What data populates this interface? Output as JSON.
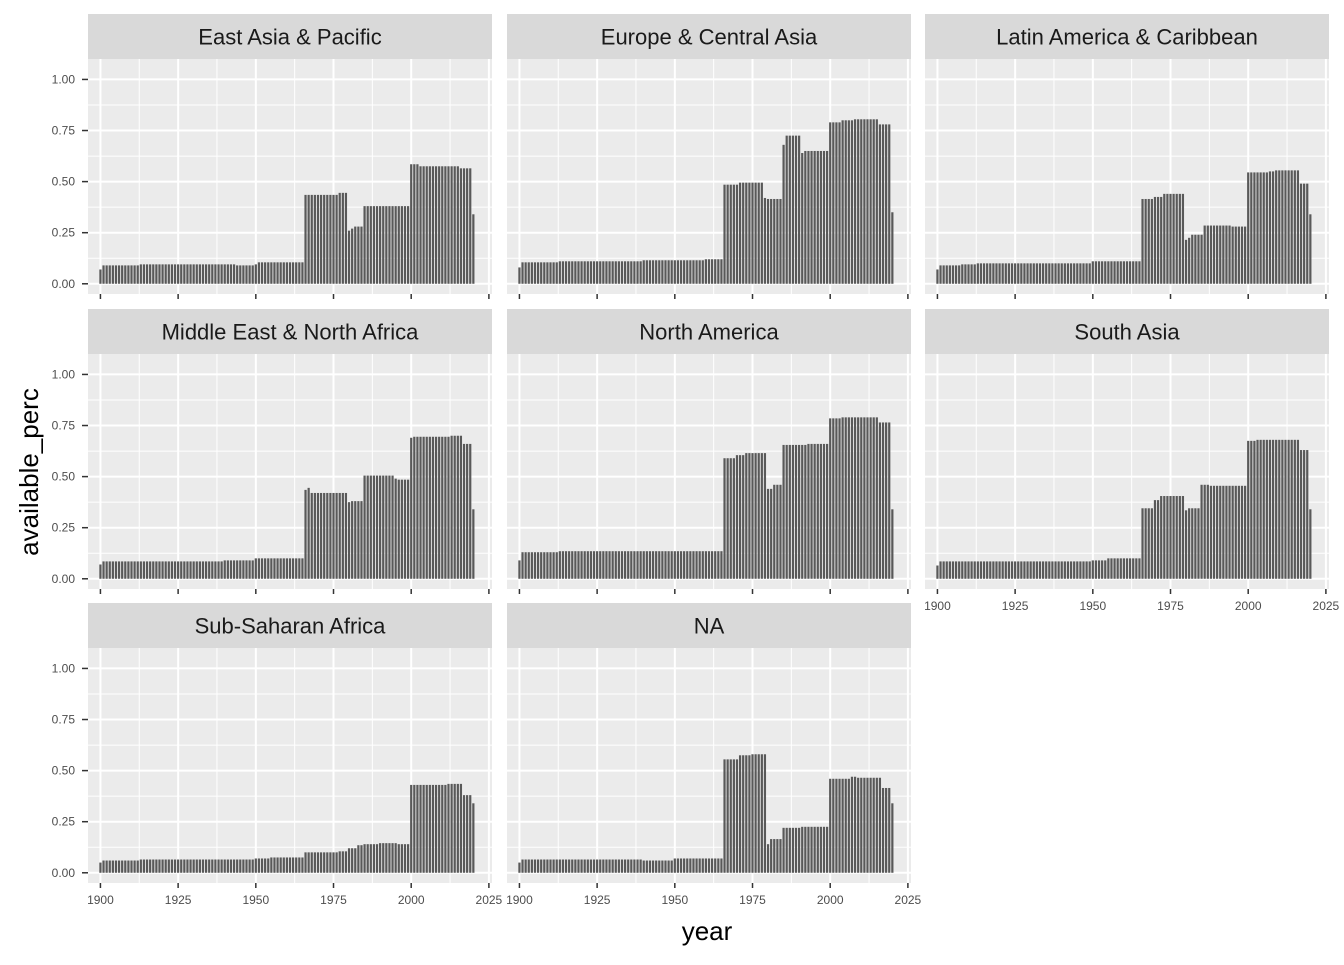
{
  "chart_data": {
    "type": "bar",
    "facet_layout": "3 columns x 3 rows (wrap)",
    "xlabel": "year",
    "ylabel": "available_perc",
    "xlim": [
      1896,
      2026
    ],
    "ylim": [
      -0.05,
      1.1
    ],
    "x_ticks": [
      1900,
      1925,
      1950,
      1975,
      2000,
      2025
    ],
    "y_ticks": [
      0.0,
      0.25,
      0.5,
      0.75,
      1.0
    ],
    "y_tick_labels": [
      "0.00",
      "0.25",
      "0.50",
      "0.75",
      "1.00"
    ],
    "bar_color": "#595959",
    "panel_background": "#ebebeb",
    "strip_background": "#d9d9d9",
    "grid": true,
    "panels": [
      {
        "title": "East Asia & Pacific",
        "segments": [
          [
            1900,
            1901,
            0.07
          ],
          [
            1901,
            1913,
            0.09
          ],
          [
            1913,
            1944,
            0.095
          ],
          [
            1944,
            1950,
            0.09
          ],
          [
            1950,
            1951,
            0.095
          ],
          [
            1951,
            1966,
            0.105
          ],
          [
            1966,
            1977,
            0.435
          ],
          [
            1977,
            1979,
            0.445
          ],
          [
            1979,
            1980,
            0.445
          ],
          [
            1980,
            1981,
            0.26
          ],
          [
            1981,
            1982,
            0.27
          ],
          [
            1982,
            1985,
            0.28
          ],
          [
            1985,
            2000,
            0.38
          ],
          [
            2000,
            2003,
            0.585
          ],
          [
            2003,
            2016,
            0.575
          ],
          [
            2016,
            2020,
            0.565
          ],
          [
            2020,
            2021,
            0.34
          ]
        ]
      },
      {
        "title": "Europe & Central Asia",
        "segments": [
          [
            1900,
            1901,
            0.08
          ],
          [
            1901,
            1913,
            0.105
          ],
          [
            1913,
            1940,
            0.11
          ],
          [
            1940,
            1960,
            0.115
          ],
          [
            1960,
            1966,
            0.12
          ],
          [
            1966,
            1971,
            0.485
          ],
          [
            1971,
            1979,
            0.495
          ],
          [
            1979,
            1980,
            0.42
          ],
          [
            1980,
            1985,
            0.415
          ],
          [
            1985,
            1986,
            0.68
          ],
          [
            1986,
            1991,
            0.725
          ],
          [
            1991,
            1992,
            0.64
          ],
          [
            1992,
            2000,
            0.65
          ],
          [
            2000,
            2004,
            0.79
          ],
          [
            2004,
            2008,
            0.8
          ],
          [
            2008,
            2016,
            0.805
          ],
          [
            2016,
            2020,
            0.78
          ],
          [
            2020,
            2021,
            0.35
          ]
        ]
      },
      {
        "title": "Latin America & Caribbean",
        "segments": [
          [
            1900,
            1901,
            0.07
          ],
          [
            1901,
            1908,
            0.09
          ],
          [
            1908,
            1913,
            0.095
          ],
          [
            1913,
            1950,
            0.1
          ],
          [
            1950,
            1966,
            0.11
          ],
          [
            1966,
            1970,
            0.415
          ],
          [
            1970,
            1973,
            0.425
          ],
          [
            1973,
            1980,
            0.44
          ],
          [
            1980,
            1981,
            0.215
          ],
          [
            1981,
            1982,
            0.225
          ],
          [
            1982,
            1986,
            0.24
          ],
          [
            1986,
            1995,
            0.285
          ],
          [
            1995,
            2000,
            0.28
          ],
          [
            2000,
            2007,
            0.545
          ],
          [
            2007,
            2009,
            0.55
          ],
          [
            2009,
            2017,
            0.555
          ],
          [
            2017,
            2020,
            0.49
          ],
          [
            2020,
            2021,
            0.34
          ]
        ]
      },
      {
        "title": "Middle East & North Africa",
        "segments": [
          [
            1900,
            1901,
            0.07
          ],
          [
            1901,
            1913,
            0.085
          ],
          [
            1913,
            1940,
            0.085
          ],
          [
            1940,
            1950,
            0.09
          ],
          [
            1950,
            1966,
            0.1
          ],
          [
            1966,
            1967,
            0.435
          ],
          [
            1967,
            1968,
            0.445
          ],
          [
            1968,
            1980,
            0.42
          ],
          [
            1980,
            1981,
            0.375
          ],
          [
            1981,
            1985,
            0.38
          ],
          [
            1985,
            1993,
            0.505
          ],
          [
            1993,
            1995,
            0.505
          ],
          [
            1995,
            1996,
            0.49
          ],
          [
            1996,
            2000,
            0.485
          ],
          [
            2000,
            2001,
            0.69
          ],
          [
            2001,
            2013,
            0.695
          ],
          [
            2013,
            2017,
            0.7
          ],
          [
            2017,
            2020,
            0.66
          ],
          [
            2020,
            2021,
            0.34
          ]
        ]
      },
      {
        "title": "North America",
        "segments": [
          [
            1900,
            1901,
            0.09
          ],
          [
            1901,
            1913,
            0.13
          ],
          [
            1913,
            1966,
            0.135
          ],
          [
            1966,
            1970,
            0.59
          ],
          [
            1970,
            1973,
            0.605
          ],
          [
            1973,
            1980,
            0.615
          ],
          [
            1980,
            1982,
            0.44
          ],
          [
            1982,
            1985,
            0.46
          ],
          [
            1985,
            1993,
            0.655
          ],
          [
            1993,
            2000,
            0.66
          ],
          [
            2000,
            2004,
            0.785
          ],
          [
            2004,
            2016,
            0.79
          ],
          [
            2016,
            2020,
            0.765
          ],
          [
            2020,
            2021,
            0.34
          ]
        ]
      },
      {
        "title": "South Asia",
        "segments": [
          [
            1900,
            1901,
            0.065
          ],
          [
            1901,
            1913,
            0.085
          ],
          [
            1913,
            1950,
            0.085
          ],
          [
            1950,
            1955,
            0.09
          ],
          [
            1955,
            1966,
            0.1
          ],
          [
            1966,
            1970,
            0.345
          ],
          [
            1970,
            1972,
            0.385
          ],
          [
            1972,
            1980,
            0.405
          ],
          [
            1980,
            1981,
            0.335
          ],
          [
            1981,
            1985,
            0.345
          ],
          [
            1985,
            1988,
            0.46
          ],
          [
            1988,
            2000,
            0.455
          ],
          [
            2000,
            2003,
            0.675
          ],
          [
            2003,
            2017,
            0.68
          ],
          [
            2017,
            2020,
            0.63
          ],
          [
            2020,
            2021,
            0.34
          ]
        ]
      },
      {
        "title": "Sub-Saharan Africa",
        "segments": [
          [
            1900,
            1901,
            0.05
          ],
          [
            1901,
            1913,
            0.06
          ],
          [
            1913,
            1950,
            0.065
          ],
          [
            1950,
            1955,
            0.07
          ],
          [
            1955,
            1966,
            0.075
          ],
          [
            1966,
            1977,
            0.1
          ],
          [
            1977,
            1980,
            0.105
          ],
          [
            1980,
            1983,
            0.12
          ],
          [
            1983,
            1985,
            0.135
          ],
          [
            1985,
            1990,
            0.14
          ],
          [
            1990,
            1996,
            0.145
          ],
          [
            1996,
            2000,
            0.14
          ],
          [
            2000,
            2001,
            0.43
          ],
          [
            2001,
            2012,
            0.43
          ],
          [
            2012,
            2017,
            0.435
          ],
          [
            2017,
            2020,
            0.38
          ],
          [
            2020,
            2021,
            0.34
          ]
        ]
      },
      {
        "title": "NA",
        "segments": [
          [
            1900,
            1901,
            0.05
          ],
          [
            1901,
            1913,
            0.065
          ],
          [
            1913,
            1940,
            0.065
          ],
          [
            1940,
            1950,
            0.06
          ],
          [
            1950,
            1966,
            0.07
          ],
          [
            1966,
            1971,
            0.555
          ],
          [
            1971,
            1975,
            0.575
          ],
          [
            1975,
            1980,
            0.58
          ],
          [
            1980,
            1981,
            0.14
          ],
          [
            1981,
            1985,
            0.165
          ],
          [
            1985,
            1991,
            0.22
          ],
          [
            1991,
            2000,
            0.225
          ],
          [
            2000,
            2007,
            0.46
          ],
          [
            2007,
            2009,
            0.47
          ],
          [
            2009,
            2017,
            0.465
          ],
          [
            2017,
            2020,
            0.415
          ],
          [
            2020,
            2021,
            0.34
          ]
        ]
      }
    ]
  }
}
